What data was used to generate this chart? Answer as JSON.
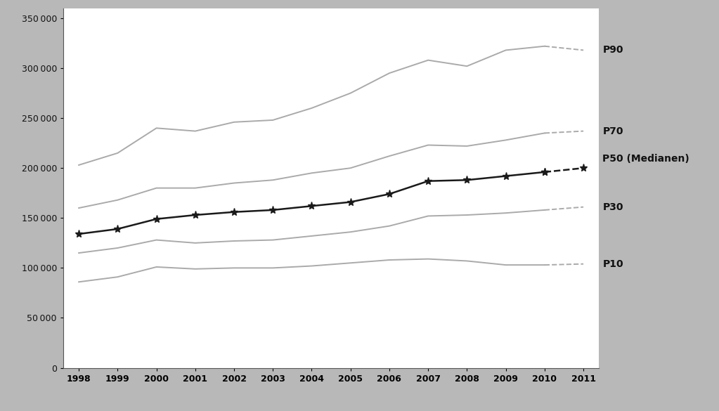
{
  "years": [
    1998,
    1999,
    2000,
    2001,
    2002,
    2003,
    2004,
    2005,
    2006,
    2007,
    2008,
    2009,
    2010,
    2011
  ],
  "P90": [
    203000,
    215000,
    240000,
    237000,
    246000,
    248000,
    260000,
    275000,
    295000,
    308000,
    302000,
    318000,
    322000,
    318000
  ],
  "P70": [
    160000,
    168000,
    180000,
    180000,
    185000,
    188000,
    195000,
    200000,
    212000,
    223000,
    222000,
    228000,
    235000,
    237000
  ],
  "P50": [
    134000,
    139000,
    149000,
    153000,
    156000,
    158000,
    162000,
    166000,
    174000,
    187000,
    188000,
    192000,
    196000,
    200000
  ],
  "P30": [
    115000,
    120000,
    128000,
    125000,
    127000,
    128000,
    132000,
    136000,
    142000,
    152000,
    153000,
    155000,
    158000,
    161000
  ],
  "P10": [
    86000,
    91000,
    101000,
    99000,
    100000,
    100000,
    102000,
    105000,
    108000,
    109000,
    107000,
    103000,
    103000,
    104000
  ],
  "line_color_gray": "#aaaaaa",
  "line_color_black": "#1a1a1a",
  "background_color": "#ffffff",
  "outer_background": "#b8b8b8",
  "ylim": [
    0,
    360000
  ],
  "yticks": [
    0,
    50000,
    100000,
    150000,
    200000,
    250000,
    300000,
    350000
  ],
  "label_P90": "P90",
  "label_P70": "P70",
  "label_P50": "P50 (Medianen)",
  "label_P30": "P30",
  "label_P10": "P10"
}
